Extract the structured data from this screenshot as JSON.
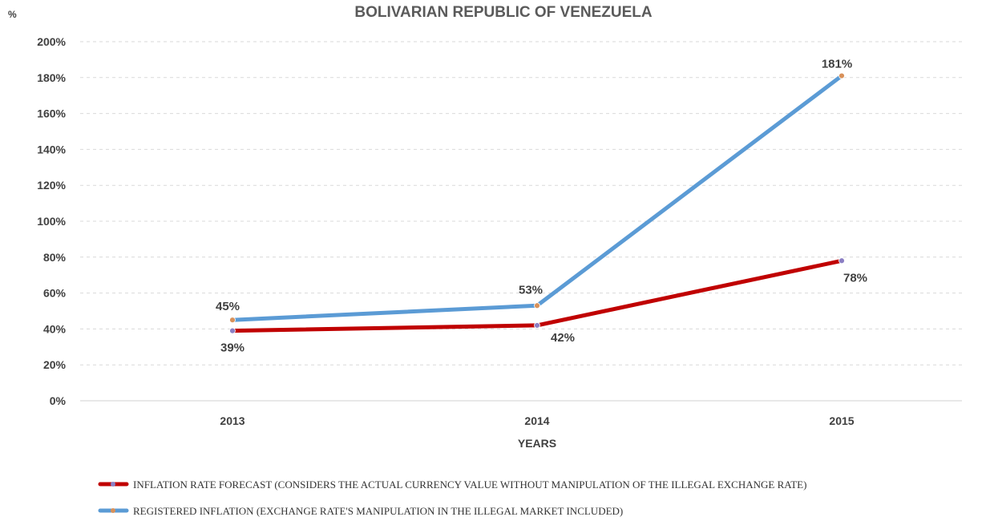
{
  "chart_data": {
    "type": "line",
    "title": "BOLIVARIAN REPUBLIC OF VENEZUELA",
    "unit_label": "%",
    "xlabel": "YEARS",
    "ylabel": "",
    "categories": [
      "2013",
      "2014",
      "2015"
    ],
    "ylim": [
      0,
      200
    ],
    "yticks": [
      "0%",
      "20%",
      "40%",
      "60%",
      "80%",
      "100%",
      "120%",
      "140%",
      "160%",
      "180%",
      "200%"
    ],
    "grid": true,
    "legend_position": "bottom",
    "series": [
      {
        "name": "INFLATION RATE FORECAST (CONSIDERS THE ACTUAL CURRENCY VALUE WITHOUT MANIPULATION OF THE ILLEGAL EXCHANGE RATE)",
        "values": [
          39,
          42,
          78
        ],
        "labels": [
          "39%",
          "42%",
          "78%"
        ],
        "color": "#c00000",
        "marker_color": "#8b7fc4",
        "label_position": "below"
      },
      {
        "name": "REGISTERED INFLATION (EXCHANGE RATE'S MANIPULATION IN THE ILLEGAL MARKET INCLUDED)",
        "values": [
          45,
          53,
          181
        ],
        "labels": [
          "45%",
          "53%",
          "181%"
        ],
        "color": "#5b9bd5",
        "marker_color": "#d8915a",
        "label_position": "above"
      }
    ]
  }
}
